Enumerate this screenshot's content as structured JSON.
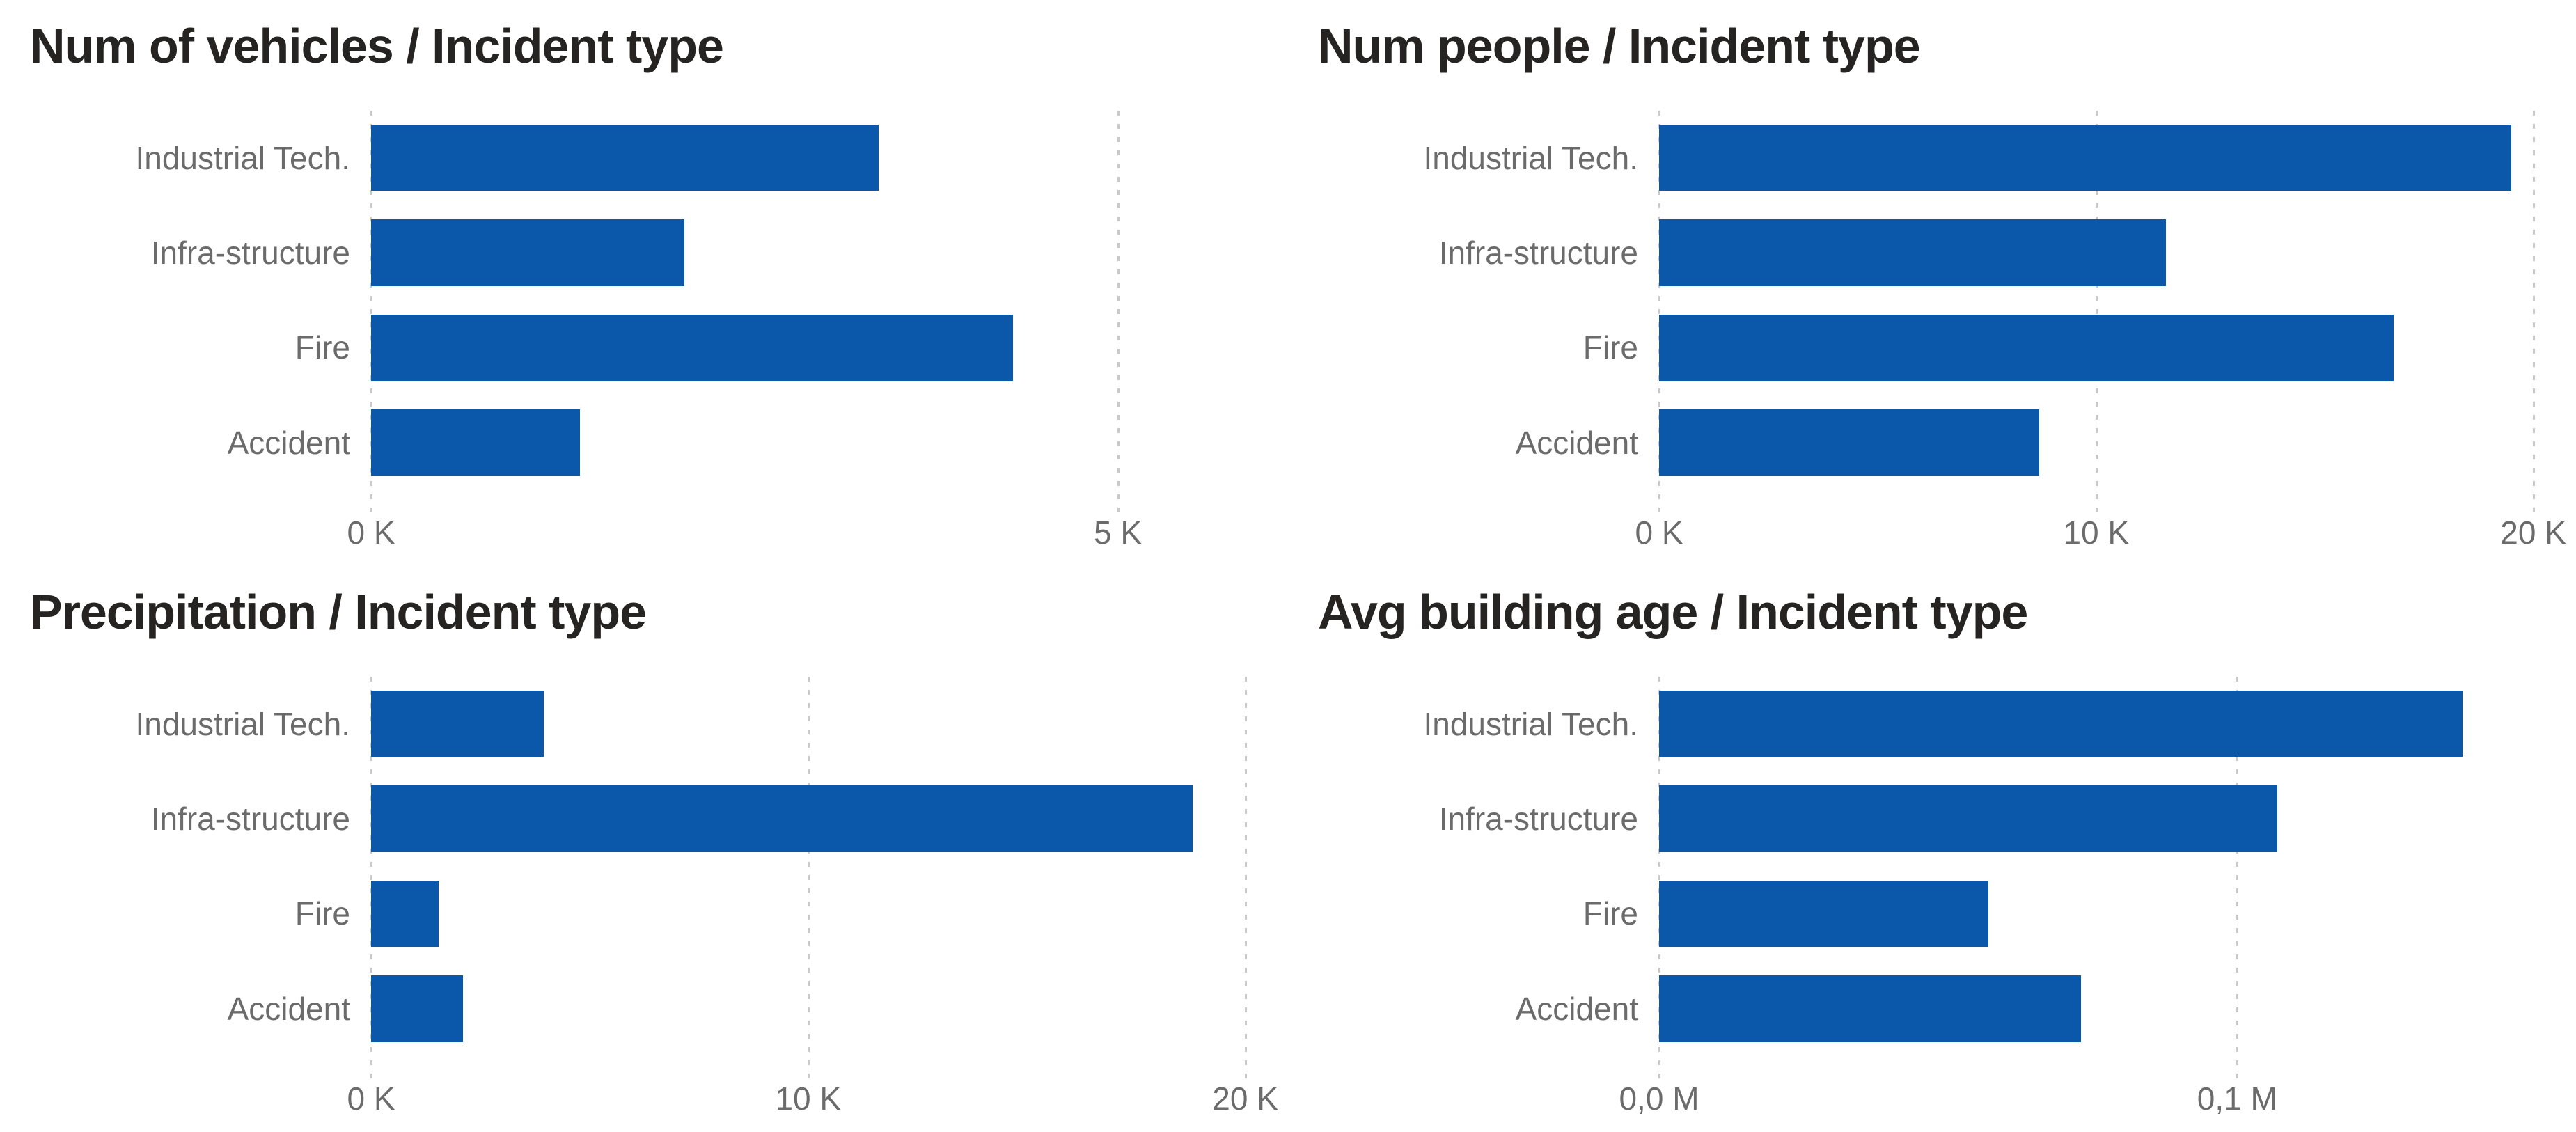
{
  "colors": {
    "background": "#FFFFFF",
    "bar": "#0B58AB",
    "chart_title": "#252423",
    "axis_label": "#6B6B6B",
    "gridline": "#C9C9C9"
  },
  "chart_data": [
    {
      "type": "bar",
      "orientation": "horizontal",
      "title": "Num of vehicles / Incident type",
      "categories": [
        "Industrial Tech.",
        "Infra-structure",
        "Fire",
        "Accident"
      ],
      "values": [
        3400,
        2100,
        4300,
        1400
      ],
      "xlabel": "",
      "ylabel": "",
      "xlim": [
        0,
        6000
      ],
      "xticks": [
        {
          "label": "0 K",
          "value": 0
        },
        {
          "label": "5 K",
          "value": 5000
        }
      ],
      "grid": "vertical-dotted",
      "legend": false
    },
    {
      "type": "bar",
      "orientation": "horizontal",
      "title": "Num people / Incident type",
      "categories": [
        "Industrial Tech.",
        "Infra-structure",
        "Fire",
        "Accident"
      ],
      "values": [
        19500,
        11600,
        16800,
        8700
      ],
      "xlabel": "",
      "ylabel": "",
      "xlim": [
        0,
        20500
      ],
      "xticks": [
        {
          "label": "0 K",
          "value": 0
        },
        {
          "label": "10 K",
          "value": 10000
        },
        {
          "label": "20 K",
          "value": 20000
        }
      ],
      "grid": "vertical-dotted",
      "legend": false
    },
    {
      "type": "bar",
      "orientation": "horizontal",
      "title": "Precipitation / Incident type",
      "categories": [
        "Industrial Tech.",
        "Infra-structure",
        "Fire",
        "Accident"
      ],
      "values": [
        3950,
        18800,
        1550,
        2100
      ],
      "xlabel": "",
      "ylabel": "",
      "xlim": [
        0,
        20500
      ],
      "xticks": [
        {
          "label": "0 K",
          "value": 0
        },
        {
          "label": "10 K",
          "value": 10000
        },
        {
          "label": "20 K",
          "value": 20000
        }
      ],
      "grid": "vertical-dotted",
      "legend": false
    },
    {
      "type": "bar",
      "orientation": "horizontal",
      "title": "Avg building age / Incident type",
      "categories": [
        "Industrial Tech.",
        "Infra-structure",
        "Fire",
        "Accident"
      ],
      "values": [
        139000,
        107000,
        57000,
        73000
      ],
      "xlabel": "",
      "ylabel": "",
      "xlim": [
        0,
        155000
      ],
      "xticks": [
        {
          "label": "0,0 M",
          "value": 0
        },
        {
          "label": "0,1 M",
          "value": 100000
        }
      ],
      "grid": "vertical-dotted",
      "legend": false
    }
  ]
}
